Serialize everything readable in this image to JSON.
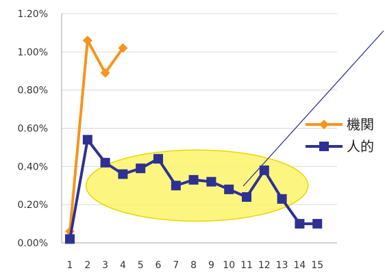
{
  "chart_data": {
    "type": "line",
    "title": "",
    "xlabel": "",
    "ylabel": "",
    "categories": [
      "1",
      "2",
      "3",
      "4",
      "5",
      "6",
      "7",
      "8",
      "9",
      "10",
      "11",
      "12",
      "13",
      "14",
      "15"
    ],
    "ylim": [
      0,
      0.012
    ],
    "y_ticks": [
      0,
      0.002,
      0.004,
      0.006,
      0.008,
      0.01,
      0.012
    ],
    "y_tick_labels": [
      "0.00%",
      "0.20%",
      "0.40%",
      "0.60%",
      "0.80%",
      "1.00%",
      "1.20%"
    ],
    "grid": true,
    "legend_position": "right",
    "series": [
      {
        "name": "機関",
        "color": "#f7941d",
        "marker": "diamond",
        "values": [
          0.0006,
          0.0106,
          0.0089,
          0.0102,
          null,
          null,
          null,
          null,
          null,
          null,
          null,
          null,
          null,
          null,
          null
        ]
      },
      {
        "name": "人的",
        "color": "#2e3192",
        "marker": "square",
        "values": [
          0.0002,
          0.0054,
          0.0042,
          0.0036,
          0.0039,
          0.0044,
          0.003,
          0.0033,
          0.0032,
          0.0028,
          0.0024,
          0.0038,
          0.0023,
          0.001,
          0.001
        ]
      }
    ],
    "annotation": {
      "type": "ellipse",
      "fill": "#fbf46a",
      "stroke": "#e6d800",
      "x_range": [
        "3",
        "13"
      ],
      "y_center": 0.003,
      "pointer_color": "#2e3192"
    }
  }
}
